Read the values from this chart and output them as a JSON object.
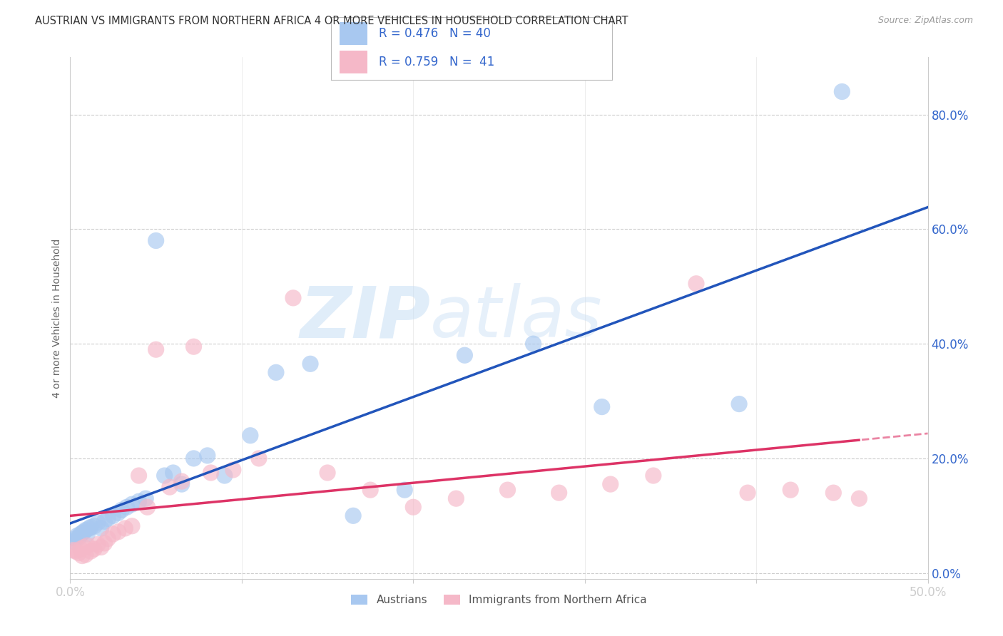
{
  "title": "AUSTRIAN VS IMMIGRANTS FROM NORTHERN AFRICA 4 OR MORE VEHICLES IN HOUSEHOLD CORRELATION CHART",
  "source": "Source: ZipAtlas.com",
  "ylabel": "4 or more Vehicles in Household",
  "xlim": [
    0.0,
    0.5
  ],
  "ylim": [
    -0.01,
    0.9
  ],
  "yticks": [
    0.0,
    0.2,
    0.4,
    0.6,
    0.8
  ],
  "xticks": [
    0.0,
    0.5
  ],
  "watermark_line1": "ZIP",
  "watermark_line2": "atlas",
  "legend_R1": "R = 0.476",
  "legend_N1": "N = 40",
  "legend_R2": "R = 0.759",
  "legend_N2": " 41",
  "austrians_color": "#A8C8F0",
  "immigrants_color": "#F5B8C8",
  "line_color_austrians": "#2255BB",
  "line_color_immigrants": "#DD3366",
  "austrians_x": [
    0.002,
    0.003,
    0.004,
    0.005,
    0.006,
    0.007,
    0.008,
    0.009,
    0.01,
    0.011,
    0.012,
    0.014,
    0.016,
    0.018,
    0.02,
    0.022,
    0.025,
    0.028,
    0.03,
    0.033,
    0.036,
    0.04,
    0.044,
    0.05,
    0.055,
    0.06,
    0.065,
    0.072,
    0.08,
    0.09,
    0.105,
    0.12,
    0.14,
    0.165,
    0.195,
    0.23,
    0.27,
    0.31,
    0.39,
    0.45
  ],
  "austrians_y": [
    0.055,
    0.06,
    0.065,
    0.062,
    0.068,
    0.07,
    0.072,
    0.075,
    0.068,
    0.078,
    0.08,
    0.082,
    0.088,
    0.078,
    0.09,
    0.095,
    0.1,
    0.105,
    0.11,
    0.115,
    0.12,
    0.125,
    0.13,
    0.58,
    0.17,
    0.175,
    0.155,
    0.2,
    0.205,
    0.17,
    0.24,
    0.35,
    0.365,
    0.1,
    0.145,
    0.38,
    0.4,
    0.29,
    0.295,
    0.84
  ],
  "immigrants_x": [
    0.002,
    0.003,
    0.005,
    0.006,
    0.007,
    0.008,
    0.009,
    0.01,
    0.012,
    0.014,
    0.016,
    0.018,
    0.02,
    0.022,
    0.025,
    0.028,
    0.032,
    0.036,
    0.04,
    0.045,
    0.05,
    0.058,
    0.065,
    0.072,
    0.082,
    0.095,
    0.11,
    0.13,
    0.15,
    0.175,
    0.2,
    0.225,
    0.255,
    0.285,
    0.315,
    0.34,
    0.365,
    0.395,
    0.42,
    0.445,
    0.46
  ],
  "immigrants_y": [
    0.04,
    0.038,
    0.035,
    0.042,
    0.03,
    0.045,
    0.032,
    0.048,
    0.038,
    0.042,
    0.05,
    0.045,
    0.052,
    0.06,
    0.068,
    0.072,
    0.078,
    0.082,
    0.17,
    0.115,
    0.39,
    0.15,
    0.16,
    0.395,
    0.175,
    0.18,
    0.2,
    0.48,
    0.175,
    0.145,
    0.115,
    0.13,
    0.145,
    0.14,
    0.155,
    0.17,
    0.505,
    0.14,
    0.145,
    0.14,
    0.13
  ],
  "background_color": "#FFFFFF",
  "grid_color": "#CCCCCC",
  "tick_label_color": "#3366CC",
  "axis_color": "#CCCCCC"
}
